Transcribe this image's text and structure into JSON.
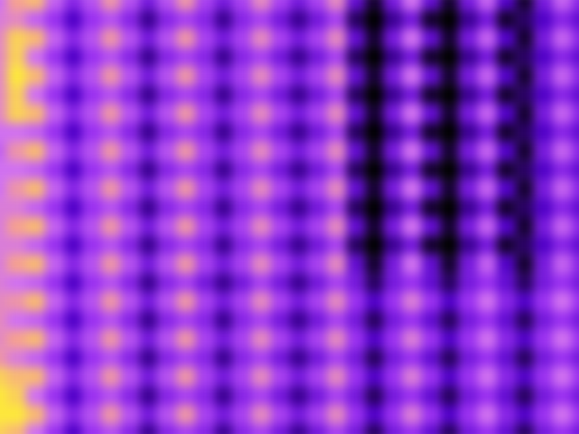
{
  "chart_data": {
    "type": "heatmap",
    "tick_labels": false,
    "zlim": [
      0,
      1
    ],
    "cells": [
      [
        0.6,
        0.8,
        0.85,
        0.55,
        0.35,
        0.5,
        0.75,
        0.5,
        0.3,
        0.5,
        0.75,
        0.45,
        0.3,
        0.45,
        0.7,
        0.45,
        0.3,
        0.45,
        0.7,
        0.25,
        0.05,
        0.3,
        0.6,
        0.25,
        0.05,
        0.3,
        0.55,
        0.2,
        0.05,
        0.3,
        0.55,
        0.35
      ],
      [
        0.65,
        0.7,
        0.55,
        0.4,
        0.2,
        0.4,
        0.5,
        0.35,
        0.15,
        0.35,
        0.45,
        0.35,
        0.15,
        0.35,
        0.45,
        0.3,
        0.15,
        0.3,
        0.45,
        0.1,
        0.0,
        0.15,
        0.3,
        0.05,
        0.0,
        0.15,
        0.3,
        0.05,
        0.1,
        0.2,
        0.35,
        0.25
      ],
      [
        0.7,
        0.9,
        0.85,
        0.55,
        0.35,
        0.5,
        0.75,
        0.5,
        0.3,
        0.5,
        0.75,
        0.45,
        0.3,
        0.45,
        0.7,
        0.45,
        0.3,
        0.45,
        0.7,
        0.25,
        0.05,
        0.3,
        0.6,
        0.25,
        0.05,
        0.3,
        0.55,
        0.2,
        0.05,
        0.3,
        0.55,
        0.35
      ],
      [
        0.7,
        0.9,
        0.6,
        0.4,
        0.2,
        0.4,
        0.5,
        0.35,
        0.15,
        0.35,
        0.45,
        0.35,
        0.15,
        0.35,
        0.45,
        0.3,
        0.15,
        0.3,
        0.45,
        0.1,
        0.0,
        0.15,
        0.3,
        0.05,
        0.0,
        0.15,
        0.3,
        0.05,
        0.1,
        0.2,
        0.35,
        0.25
      ],
      [
        0.7,
        0.95,
        0.85,
        0.55,
        0.35,
        0.5,
        0.75,
        0.5,
        0.3,
        0.5,
        0.75,
        0.45,
        0.3,
        0.45,
        0.7,
        0.45,
        0.3,
        0.45,
        0.7,
        0.25,
        0.05,
        0.3,
        0.6,
        0.25,
        0.05,
        0.3,
        0.55,
        0.2,
        0.05,
        0.3,
        0.55,
        0.35
      ],
      [
        0.7,
        0.9,
        0.6,
        0.4,
        0.2,
        0.4,
        0.5,
        0.35,
        0.15,
        0.35,
        0.45,
        0.35,
        0.15,
        0.35,
        0.45,
        0.3,
        0.15,
        0.3,
        0.45,
        0.1,
        0.0,
        0.15,
        0.3,
        0.05,
        0.0,
        0.15,
        0.3,
        0.05,
        0.1,
        0.2,
        0.35,
        0.25
      ],
      [
        0.7,
        0.9,
        0.85,
        0.55,
        0.35,
        0.5,
        0.75,
        0.5,
        0.3,
        0.5,
        0.75,
        0.45,
        0.3,
        0.45,
        0.7,
        0.45,
        0.3,
        0.45,
        0.7,
        0.25,
        0.05,
        0.3,
        0.6,
        0.25,
        0.05,
        0.3,
        0.55,
        0.2,
        0.05,
        0.3,
        0.55,
        0.35
      ],
      [
        0.6,
        0.6,
        0.55,
        0.4,
        0.2,
        0.4,
        0.5,
        0.35,
        0.15,
        0.35,
        0.45,
        0.35,
        0.15,
        0.35,
        0.45,
        0.3,
        0.15,
        0.3,
        0.45,
        0.1,
        0.0,
        0.15,
        0.3,
        0.05,
        0.0,
        0.15,
        0.3,
        0.05,
        0.1,
        0.2,
        0.35,
        0.25
      ],
      [
        0.55,
        0.75,
        0.85,
        0.55,
        0.35,
        0.5,
        0.75,
        0.5,
        0.3,
        0.5,
        0.75,
        0.45,
        0.3,
        0.45,
        0.7,
        0.45,
        0.3,
        0.45,
        0.7,
        0.25,
        0.05,
        0.3,
        0.6,
        0.25,
        0.05,
        0.3,
        0.55,
        0.2,
        0.05,
        0.3,
        0.55,
        0.35
      ],
      [
        0.6,
        0.6,
        0.55,
        0.4,
        0.2,
        0.4,
        0.5,
        0.35,
        0.15,
        0.35,
        0.45,
        0.35,
        0.15,
        0.35,
        0.45,
        0.3,
        0.15,
        0.3,
        0.45,
        0.1,
        0.0,
        0.15,
        0.3,
        0.05,
        0.0,
        0.15,
        0.3,
        0.05,
        0.1,
        0.2,
        0.35,
        0.25
      ],
      [
        0.6,
        0.75,
        0.85,
        0.55,
        0.35,
        0.5,
        0.75,
        0.5,
        0.3,
        0.5,
        0.75,
        0.45,
        0.3,
        0.45,
        0.7,
        0.45,
        0.3,
        0.45,
        0.7,
        0.25,
        0.05,
        0.3,
        0.6,
        0.25,
        0.05,
        0.3,
        0.55,
        0.2,
        0.05,
        0.3,
        0.55,
        0.35
      ],
      [
        0.65,
        0.65,
        0.55,
        0.4,
        0.2,
        0.4,
        0.5,
        0.35,
        0.15,
        0.35,
        0.45,
        0.35,
        0.15,
        0.35,
        0.45,
        0.3,
        0.15,
        0.3,
        0.45,
        0.1,
        0.0,
        0.15,
        0.3,
        0.05,
        0.0,
        0.15,
        0.3,
        0.05,
        0.1,
        0.2,
        0.35,
        0.25
      ],
      [
        0.65,
        0.8,
        0.85,
        0.55,
        0.35,
        0.5,
        0.75,
        0.5,
        0.3,
        0.5,
        0.75,
        0.45,
        0.3,
        0.45,
        0.7,
        0.45,
        0.3,
        0.45,
        0.7,
        0.25,
        0.05,
        0.3,
        0.6,
        0.25,
        0.05,
        0.3,
        0.55,
        0.2,
        0.05,
        0.3,
        0.55,
        0.35
      ],
      [
        0.65,
        0.65,
        0.55,
        0.4,
        0.2,
        0.4,
        0.5,
        0.35,
        0.15,
        0.35,
        0.45,
        0.35,
        0.15,
        0.35,
        0.45,
        0.3,
        0.15,
        0.3,
        0.45,
        0.1,
        0.0,
        0.15,
        0.3,
        0.05,
        0.0,
        0.15,
        0.3,
        0.05,
        0.1,
        0.2,
        0.35,
        0.25
      ],
      [
        0.65,
        0.8,
        0.85,
        0.55,
        0.35,
        0.5,
        0.75,
        0.5,
        0.3,
        0.5,
        0.75,
        0.45,
        0.3,
        0.45,
        0.7,
        0.45,
        0.3,
        0.45,
        0.7,
        0.25,
        0.05,
        0.3,
        0.6,
        0.25,
        0.05,
        0.3,
        0.55,
        0.2,
        0.05,
        0.3,
        0.55,
        0.35
      ],
      [
        0.65,
        0.6,
        0.55,
        0.4,
        0.2,
        0.4,
        0.5,
        0.35,
        0.15,
        0.35,
        0.45,
        0.3,
        0.15,
        0.3,
        0.45,
        0.3,
        0.15,
        0.3,
        0.45,
        0.3,
        0.1,
        0.3,
        0.4,
        0.25,
        0.1,
        0.3,
        0.4,
        0.25,
        0.1,
        0.3,
        0.4,
        0.3
      ],
      [
        0.7,
        0.75,
        0.85,
        0.55,
        0.35,
        0.5,
        0.75,
        0.5,
        0.3,
        0.5,
        0.75,
        0.45,
        0.3,
        0.45,
        0.7,
        0.45,
        0.3,
        0.45,
        0.7,
        0.4,
        0.2,
        0.4,
        0.65,
        0.4,
        0.2,
        0.4,
        0.6,
        0.35,
        0.2,
        0.4,
        0.6,
        0.4
      ],
      [
        0.7,
        0.6,
        0.55,
        0.4,
        0.2,
        0.4,
        0.5,
        0.35,
        0.15,
        0.35,
        0.45,
        0.35,
        0.15,
        0.35,
        0.45,
        0.3,
        0.15,
        0.3,
        0.45,
        0.3,
        0.1,
        0.3,
        0.4,
        0.25,
        0.1,
        0.3,
        0.4,
        0.25,
        0.1,
        0.3,
        0.4,
        0.3
      ],
      [
        0.7,
        0.8,
        0.85,
        0.55,
        0.35,
        0.5,
        0.75,
        0.5,
        0.3,
        0.5,
        0.75,
        0.45,
        0.3,
        0.45,
        0.7,
        0.45,
        0.3,
        0.45,
        0.7,
        0.4,
        0.2,
        0.4,
        0.65,
        0.4,
        0.2,
        0.4,
        0.6,
        0.35,
        0.2,
        0.4,
        0.6,
        0.4
      ],
      [
        0.75,
        0.65,
        0.55,
        0.4,
        0.2,
        0.4,
        0.5,
        0.35,
        0.15,
        0.35,
        0.45,
        0.35,
        0.15,
        0.35,
        0.45,
        0.3,
        0.15,
        0.3,
        0.45,
        0.3,
        0.1,
        0.3,
        0.4,
        0.25,
        0.1,
        0.3,
        0.4,
        0.25,
        0.1,
        0.3,
        0.4,
        0.3
      ],
      [
        0.9,
        0.85,
        0.85,
        0.55,
        0.35,
        0.5,
        0.75,
        0.5,
        0.3,
        0.5,
        0.75,
        0.45,
        0.3,
        0.45,
        0.7,
        0.45,
        0.3,
        0.45,
        0.7,
        0.4,
        0.2,
        0.4,
        0.65,
        0.4,
        0.2,
        0.4,
        0.6,
        0.35,
        0.2,
        0.4,
        0.6,
        0.4
      ],
      [
        0.95,
        0.9,
        0.6,
        0.4,
        0.2,
        0.4,
        0.5,
        0.35,
        0.15,
        0.35,
        0.45,
        0.35,
        0.15,
        0.35,
        0.45,
        0.3,
        0.15,
        0.3,
        0.45,
        0.3,
        0.1,
        0.3,
        0.4,
        0.25,
        0.1,
        0.3,
        0.4,
        0.25,
        0.1,
        0.3,
        0.4,
        0.3
      ],
      [
        0.95,
        0.95,
        0.85,
        0.55,
        0.35,
        0.5,
        0.75,
        0.5,
        0.3,
        0.5,
        0.75,
        0.45,
        0.3,
        0.45,
        0.7,
        0.45,
        0.3,
        0.45,
        0.7,
        0.4,
        0.2,
        0.4,
        0.65,
        0.4,
        0.2,
        0.4,
        0.6,
        0.35,
        0.2,
        0.4,
        0.6,
        0.4
      ],
      [
        0.9,
        0.85,
        0.6,
        0.4,
        0.2,
        0.4,
        0.5,
        0.35,
        0.15,
        0.35,
        0.45,
        0.35,
        0.15,
        0.35,
        0.45,
        0.3,
        0.15,
        0.3,
        0.45,
        0.3,
        0.1,
        0.3,
        0.4,
        0.25,
        0.1,
        0.3,
        0.4,
        0.25,
        0.1,
        0.3,
        0.4,
        0.3
      ]
    ]
  }
}
